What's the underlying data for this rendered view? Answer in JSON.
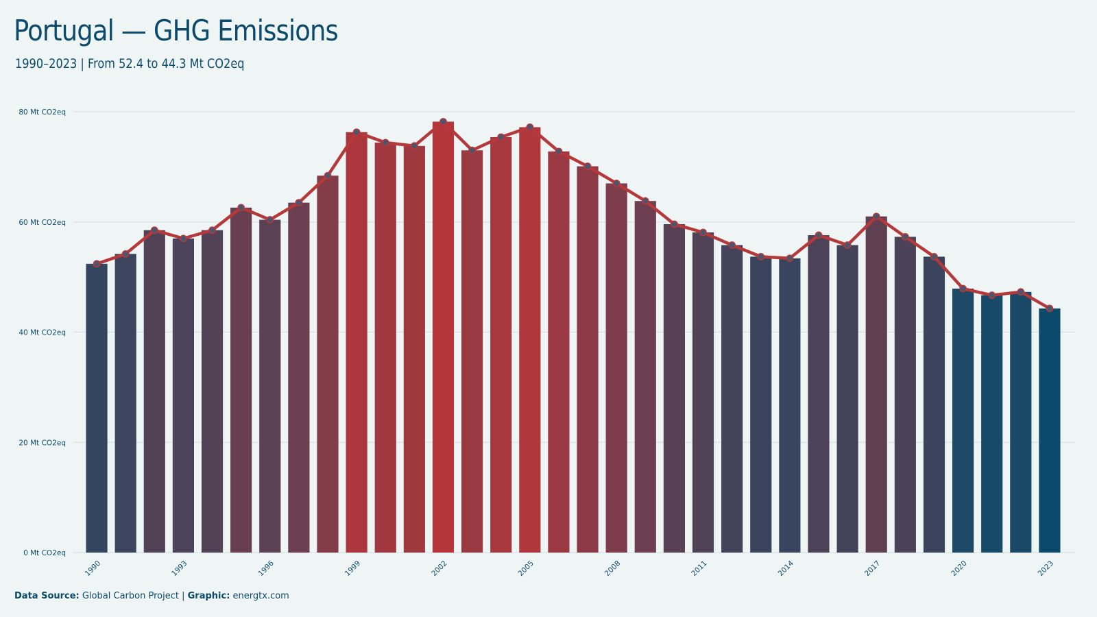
{
  "title": "Portugal — GHG Emissions",
  "subtitle": "1990–2023 | From 52.4 to 44.3 Mt CO2eq",
  "footer": {
    "source_label": "Data Source:",
    "source_value": "Global Carbon Project",
    "separator": "|",
    "graphic_label": "Graphic:",
    "graphic_value": "energtx.com"
  },
  "colors": {
    "line": "#b5393a",
    "marker_fill": "#4a5570",
    "low": "#0b4a6b",
    "high": "#b5363a",
    "grid": "#d8e2e5",
    "text": "#0b4a6b"
  },
  "chart_data": {
    "type": "bar",
    "overlay": "line-with-markers",
    "x": [
      1990,
      1991,
      1992,
      1993,
      1994,
      1995,
      1996,
      1997,
      1998,
      1999,
      2000,
      2001,
      2002,
      2003,
      2004,
      2005,
      2006,
      2007,
      2008,
      2009,
      2010,
      2011,
      2012,
      2013,
      2014,
      2015,
      2016,
      2017,
      2018,
      2019,
      2020,
      2021,
      2022,
      2023
    ],
    "values": [
      52.4,
      54.2,
      58.5,
      57.0,
      58.5,
      62.6,
      60.4,
      63.5,
      68.4,
      76.3,
      74.4,
      73.8,
      78.2,
      73.0,
      75.4,
      77.2,
      72.8,
      70.1,
      67.0,
      63.8,
      59.6,
      58.1,
      55.8,
      53.7,
      53.4,
      57.6,
      55.8,
      61.0,
      57.3,
      53.7,
      47.9,
      46.7,
      47.3,
      44.3
    ],
    "x_tick_labels": [
      "1990",
      "1993",
      "1996",
      "1999",
      "2002",
      "2005",
      "2008",
      "2011",
      "2014",
      "2017",
      "2020",
      "2023"
    ],
    "y_ticks": [
      0,
      20,
      40,
      60,
      80
    ],
    "y_tick_labels": [
      "0 Mt CO2eq",
      "20 Mt CO2eq",
      "40 Mt CO2eq",
      "60 Mt CO2eq",
      "80 Mt CO2eq"
    ],
    "ylim": [
      0,
      80
    ],
    "grid": true,
    "legend": "none",
    "xlabel": "",
    "ylabel": ""
  }
}
